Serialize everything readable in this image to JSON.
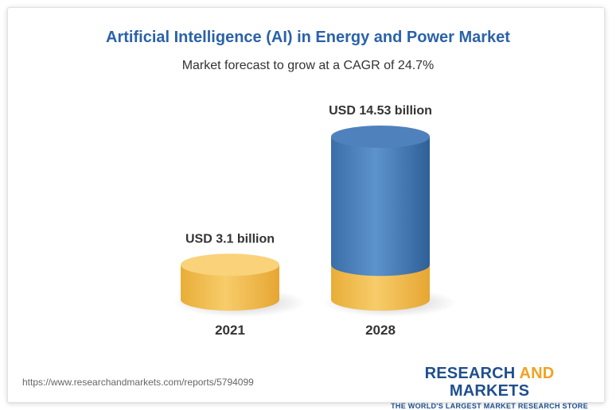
{
  "chart_data": {
    "type": "bar",
    "title": "Artificial Intelligence (AI) in Energy and Power Market",
    "subtitle": "Market forecast to grow at a CAGR of 24.7%",
    "categories": [
      "2021",
      "2028"
    ],
    "values": [
      3.1,
      14.53
    ],
    "value_labels": [
      "USD 3.1 billion",
      "USD 14.53 billion"
    ],
    "units": "USD billion",
    "colors": {
      "base": "#f4c25a",
      "growth": "#3f76b3"
    }
  },
  "footer": {
    "source_url": "https://www.researchandmarkets.com/reports/5794099",
    "brand_part1": "RESEARCH ",
    "brand_part2": "AND",
    "brand_part3": " MARKETS",
    "brand_tagline": "THE WORLD'S LARGEST MARKET RESEARCH STORE"
  }
}
